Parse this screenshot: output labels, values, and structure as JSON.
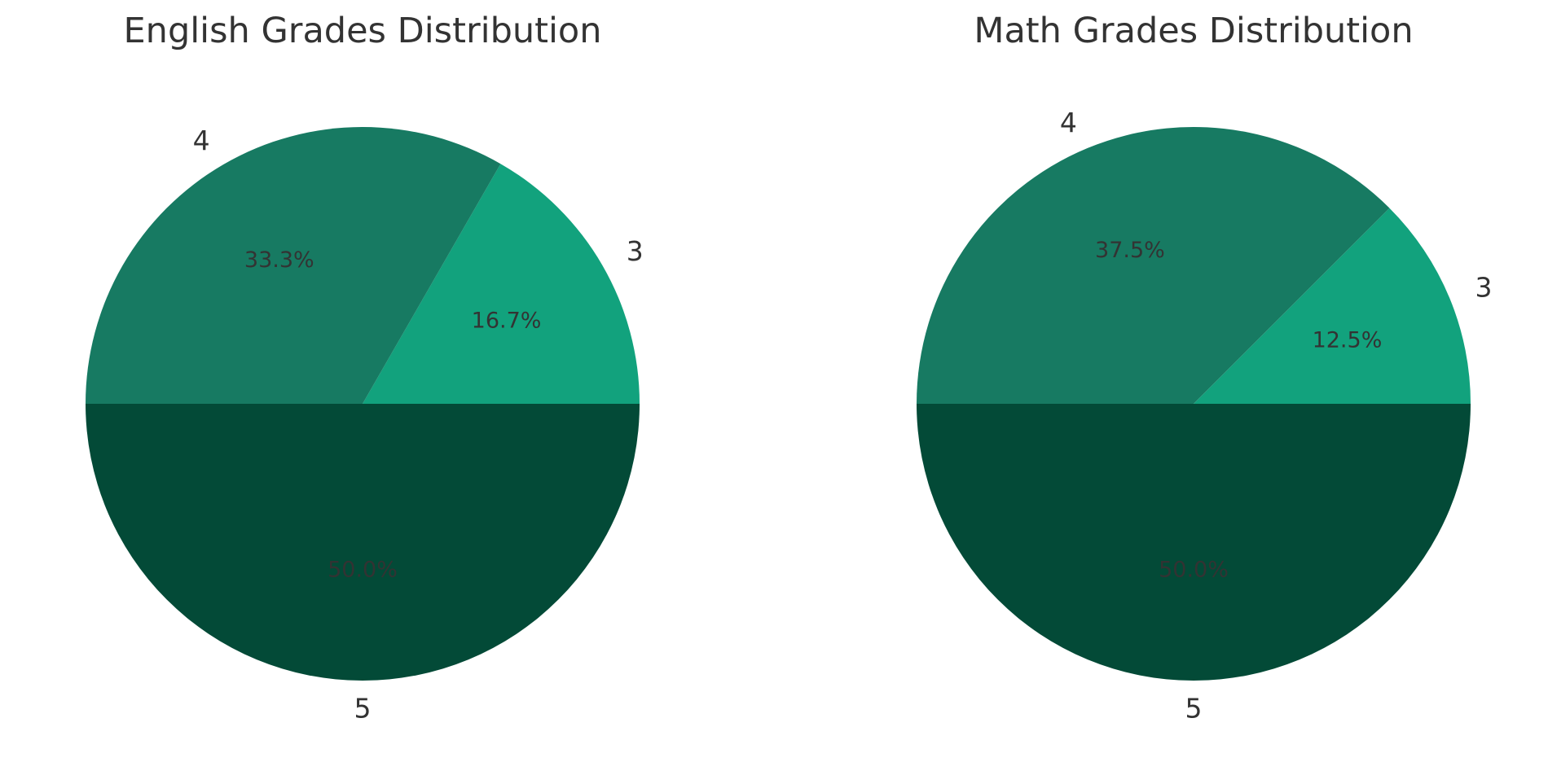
{
  "chart_data": [
    {
      "type": "pie",
      "title": "English Grades Distribution",
      "labels": [
        "3",
        "4",
        "5"
      ],
      "values": [
        16.7,
        33.3,
        50.0
      ],
      "percent_labels": [
        "16.7%",
        "33.3%",
        "50.0%"
      ],
      "colors": [
        "#12a27d",
        "#177a62",
        "#034a37"
      ],
      "start_angle_deg": 0,
      "direction": "counterclockwise",
      "legend": "none"
    },
    {
      "type": "pie",
      "title": "Math Grades Distribution",
      "labels": [
        "3",
        "4",
        "5"
      ],
      "values": [
        12.5,
        37.5,
        50.0
      ],
      "percent_labels": [
        "12.5%",
        "37.5%",
        "50.0%"
      ],
      "colors": [
        "#12a27d",
        "#177a62",
        "#034a37"
      ],
      "start_angle_deg": 0,
      "direction": "counterclockwise",
      "legend": "none"
    }
  ]
}
